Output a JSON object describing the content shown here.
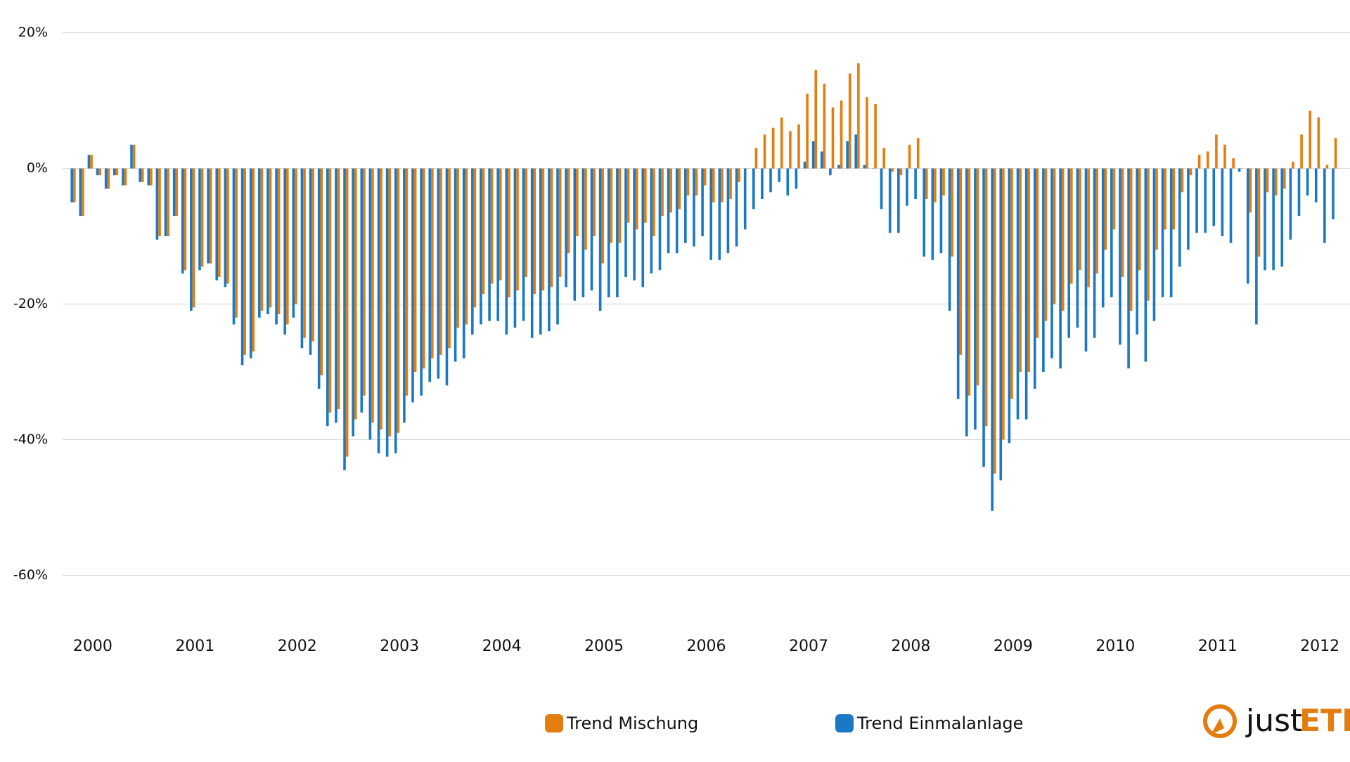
{
  "chart_data": {
    "type": "bar",
    "categories": [
      "2000",
      null,
      null,
      null,
      null,
      null,
      null,
      null,
      null,
      null,
      null,
      null,
      "2001",
      null,
      null,
      null,
      null,
      null,
      null,
      null,
      null,
      null,
      null,
      null,
      "2002",
      null,
      null,
      null,
      null,
      null,
      null,
      null,
      null,
      null,
      null,
      null,
      "2003",
      null,
      null,
      null,
      null,
      null,
      null,
      null,
      null,
      null,
      null,
      null,
      "2004",
      null,
      null,
      null,
      null,
      null,
      null,
      null,
      null,
      null,
      null,
      null,
      "2005",
      null,
      null,
      null,
      null,
      null,
      null,
      null,
      null,
      null,
      null,
      null,
      "2006",
      null,
      null,
      null,
      null,
      null,
      null,
      null,
      null,
      null,
      null,
      null,
      "2007",
      null,
      null,
      null,
      null,
      null,
      null,
      null,
      null,
      null,
      null,
      null,
      "2008",
      null,
      null,
      null,
      null,
      null,
      null,
      null,
      null,
      null,
      null,
      null,
      "2009",
      null,
      null,
      null,
      null,
      null,
      null,
      null,
      null,
      null,
      null,
      null,
      "2010",
      null,
      null,
      null,
      null,
      null,
      null,
      null,
      null,
      null,
      null,
      null,
      "2011",
      null,
      null,
      null,
      null,
      null,
      null,
      null,
      null,
      null,
      null,
      null,
      "2012",
      null,
      null,
      null,
      null
    ],
    "series": [
      {
        "name": "Trend Mischung",
        "color": "#e47d10",
        "values": [
          -5,
          -7,
          2,
          -1,
          -3,
          -1,
          -2.5,
          3.5,
          -2,
          -2.5,
          -10,
          -10,
          -7,
          -15,
          -20.5,
          -14.5,
          -14,
          -16,
          -17,
          -22,
          -27.5,
          -27,
          -21,
          -20.5,
          -21.5,
          -23,
          -20,
          -25,
          -25.5,
          -30.5,
          -36,
          -35.5,
          -42.5,
          -37,
          -33.5,
          -37.5,
          -38.5,
          -39.5,
          -39,
          -33.5,
          -30,
          -29.5,
          -28,
          -27.5,
          -26.5,
          -23.5,
          -23,
          -20.5,
          -18.5,
          -17,
          -16.5,
          -19,
          -18,
          -16,
          -18.5,
          -18,
          -17.5,
          -16,
          -12.5,
          -10,
          -12,
          -10,
          -14,
          -11,
          -11,
          -8,
          -9,
          -8,
          -10,
          -7,
          -6.5,
          -6,
          -4,
          -4,
          -2.5,
          -5,
          -5,
          -4.5,
          -2,
          0,
          3,
          5,
          6,
          7.5,
          5.5,
          6.5,
          11,
          14.5,
          12.5,
          9,
          10,
          14,
          15.5,
          10.5,
          9.5,
          3,
          -0.5,
          -1,
          3.5,
          4.5,
          -4.5,
          -5,
          -4,
          -13,
          -27.5,
          -33.5,
          -32,
          -38,
          -45,
          -40,
          -34,
          -30,
          -30,
          -25,
          -22.5,
          -20,
          -21,
          -17,
          -15,
          -17.5,
          -15.5,
          -12,
          -9,
          -16,
          -21,
          -15,
          -19.5,
          -12,
          -9,
          -9,
          -3.5,
          -1,
          2,
          2.5,
          5,
          3.5,
          1.5,
          0,
          -6.5,
          -13,
          -3.5,
          -4,
          -3,
          1,
          5,
          8.5,
          7.5,
          0.5,
          4.5
        ]
      },
      {
        "name": "Trend Einmalanlage",
        "color": "#1a78c4",
        "values": [
          -5,
          -7,
          2,
          -1,
          -3,
          -1,
          -2.5,
          3.5,
          -2,
          -2.5,
          -10.5,
          -10,
          -7,
          -15.5,
          -21,
          -15,
          -14,
          -16.5,
          -17.5,
          -23,
          -29,
          -28,
          -22,
          -21.5,
          -23,
          -24.5,
          -22,
          -26.5,
          -27.5,
          -32.5,
          -38,
          -37.5,
          -44.5,
          -39.5,
          -36,
          -40,
          -42,
          -42.5,
          -42,
          -37.5,
          -34.5,
          -33.5,
          -31.5,
          -31,
          -32,
          -28.5,
          -28,
          -24.5,
          -23,
          -22.5,
          -22.5,
          -24.5,
          -23.5,
          -22.5,
          -25,
          -24.5,
          -24,
          -23,
          -17.5,
          -19.5,
          -19,
          -18,
          -21,
          -19,
          -19,
          -16,
          -16.5,
          -17.5,
          -15.5,
          -15,
          -12.5,
          -12.5,
          -11,
          -11.5,
          -10,
          -13.5,
          -13.5,
          -12.5,
          -11.5,
          -9,
          -6,
          -4.5,
          -3.5,
          -2,
          -4,
          -3,
          1,
          4,
          2.5,
          -1,
          0.5,
          4,
          5,
          0.5,
          0,
          -6,
          -9.5,
          -9.5,
          -5.5,
          -4.5,
          -13,
          -13.5,
          -12.5,
          -21,
          -34,
          -39.5,
          -38.5,
          -44,
          -50.5,
          -46,
          -40.5,
          -37,
          -37,
          -32.5,
          -30,
          -28,
          -29.5,
          -25,
          -23.5,
          -27,
          -25,
          -20.5,
          -19,
          -26,
          -29.5,
          -24.5,
          -28.5,
          -22.5,
          -19,
          -19,
          -14.5,
          -12,
          -9.5,
          -9.5,
          -8.5,
          -10,
          -11,
          -0.5,
          -17,
          -23,
          -15,
          -15,
          -14.5,
          -10.5,
          -7,
          -4,
          -5,
          -11,
          -7.5
        ]
      }
    ],
    "ylim": [
      -64,
      21
    ],
    "yticks": [
      {
        "value": -60,
        "label": "-60%"
      },
      {
        "value": -40,
        "label": "-40%"
      },
      {
        "value": -20,
        "label": "-20%"
      },
      {
        "value": 0,
        "label": "0%"
      },
      {
        "value": 20,
        "label": "20%"
      }
    ],
    "grid": true,
    "legend": "bottom"
  },
  "logo": {
    "prefix": "just",
    "suffix": "ETF"
  }
}
